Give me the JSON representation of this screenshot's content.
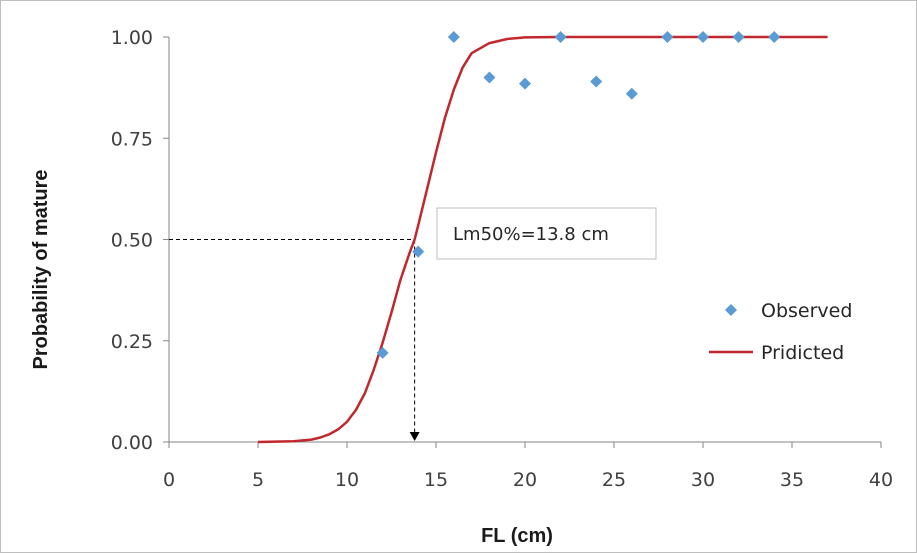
{
  "chart_data": {
    "type": "scatter",
    "title": "",
    "xlabel": "FL (cm)",
    "ylabel": "Probability of mature",
    "xlim": [
      0,
      40
    ],
    "ylim": [
      0,
      1
    ],
    "x_ticks": [
      "0",
      "5",
      "10",
      "15",
      "20",
      "25",
      "30",
      "35",
      "40"
    ],
    "y_ticks": [
      "0.00",
      "0.25",
      "0.50",
      "0.75",
      "1.00"
    ],
    "x_tick_values": [
      0,
      5,
      10,
      15,
      20,
      25,
      30,
      35,
      40
    ],
    "y_tick_values": [
      0,
      0.25,
      0.5,
      0.75,
      1.0
    ],
    "grid": false,
    "legend_position": "right",
    "series": [
      {
        "name": "Observed",
        "type": "scatter",
        "marker": "diamond",
        "color": "#5b9bd5",
        "x": [
          12,
          14,
          16,
          18,
          20,
          22,
          24,
          26,
          28,
          30,
          32,
          34
        ],
        "y": [
          0.22,
          0.47,
          1.0,
          0.9,
          0.885,
          1.0,
          0.89,
          0.86,
          1.0,
          1.0,
          1.0,
          1.0
        ]
      },
      {
        "name": "Pridicted",
        "type": "line",
        "color": "#c0282d",
        "x": [
          5,
          6,
          7,
          8,
          8.5,
          9,
          9.5,
          10,
          10.5,
          11,
          11.5,
          12,
          12.5,
          13,
          13.5,
          13.8,
          14,
          14.5,
          15,
          15.5,
          16,
          16.5,
          17,
          18,
          19,
          20,
          22,
          25,
          30,
          37
        ],
        "y": [
          0.0,
          0.001,
          0.002,
          0.006,
          0.011,
          0.019,
          0.031,
          0.05,
          0.079,
          0.12,
          0.178,
          0.245,
          0.32,
          0.4,
          0.465,
          0.5,
          0.535,
          0.625,
          0.715,
          0.8,
          0.87,
          0.925,
          0.96,
          0.985,
          0.995,
          0.999,
          1.0,
          1.0,
          1.0,
          1.0
        ]
      }
    ],
    "annotation": {
      "text": "Lm50%=13.8 cm",
      "x": 13.8,
      "y": 0.5,
      "color": "#000000"
    }
  }
}
